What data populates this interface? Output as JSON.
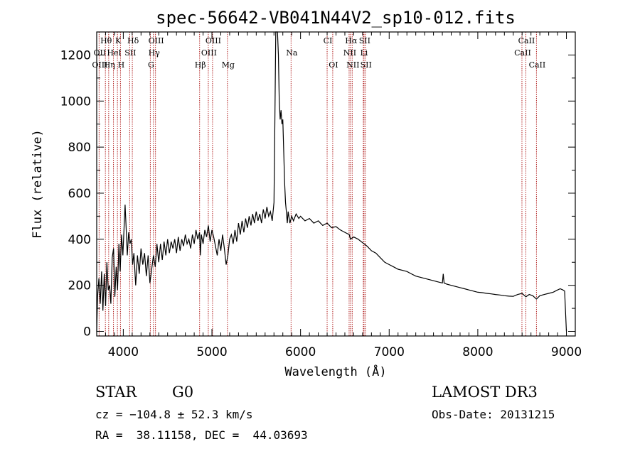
{
  "chart_data": {
    "type": "line",
    "title": "spec-56642-VB041N44V2_sp10-012.fits",
    "xlabel": "Wavelength (Å)",
    "ylabel": "Flux (relative)",
    "xlim": [
      3700,
      9100
    ],
    "ylim": [
      -20,
      1300
    ],
    "xticks": [
      4000,
      5000,
      6000,
      7000,
      8000,
      9000
    ],
    "yticks": [
      0,
      200,
      400,
      600,
      800,
      1000,
      1200
    ],
    "series": [
      {
        "name": "flux",
        "points": [
          [
            3700,
            0
          ],
          [
            3710,
            150
          ],
          [
            3725,
            230
          ],
          [
            3740,
            120
          ],
          [
            3755,
            260
          ],
          [
            3770,
            90
          ],
          [
            3785,
            250
          ],
          [
            3800,
            110
          ],
          [
            3815,
            300
          ],
          [
            3830,
            180
          ],
          [
            3845,
            200
          ],
          [
            3860,
            120
          ],
          [
            3875,
            320
          ],
          [
            3890,
            360
          ],
          [
            3905,
            150
          ],
          [
            3920,
            280
          ],
          [
            3935,
            180
          ],
          [
            3950,
            380
          ],
          [
            3965,
            260
          ],
          [
            3980,
            420
          ],
          [
            3995,
            330
          ],
          [
            4010,
            460
          ],
          [
            4020,
            550
          ],
          [
            4030,
            470
          ],
          [
            4045,
            330
          ],
          [
            4060,
            430
          ],
          [
            4075,
            380
          ],
          [
            4090,
            400
          ],
          [
            4105,
            290
          ],
          [
            4120,
            340
          ],
          [
            4140,
            200
          ],
          [
            4160,
            330
          ],
          [
            4180,
            250
          ],
          [
            4200,
            360
          ],
          [
            4220,
            290
          ],
          [
            4240,
            340
          ],
          [
            4260,
            240
          ],
          [
            4280,
            330
          ],
          [
            4300,
            210
          ],
          [
            4320,
            270
          ],
          [
            4340,
            330
          ],
          [
            4360,
            280
          ],
          [
            4380,
            380
          ],
          [
            4400,
            300
          ],
          [
            4420,
            380
          ],
          [
            4440,
            310
          ],
          [
            4460,
            390
          ],
          [
            4480,
            330
          ],
          [
            4500,
            400
          ],
          [
            4520,
            340
          ],
          [
            4540,
            390
          ],
          [
            4560,
            360
          ],
          [
            4580,
            400
          ],
          [
            4600,
            340
          ],
          [
            4620,
            410
          ],
          [
            4640,
            350
          ],
          [
            4660,
            400
          ],
          [
            4680,
            370
          ],
          [
            4700,
            420
          ],
          [
            4720,
            380
          ],
          [
            4740,
            400
          ],
          [
            4760,
            360
          ],
          [
            4780,
            420
          ],
          [
            4800,
            380
          ],
          [
            4820,
            440
          ],
          [
            4840,
            400
          ],
          [
            4860,
            430
          ],
          [
            4870,
            330
          ],
          [
            4880,
            420
          ],
          [
            4900,
            380
          ],
          [
            4920,
            440
          ],
          [
            4940,
            410
          ],
          [
            4960,
            460
          ],
          [
            4980,
            390
          ],
          [
            5000,
            440
          ],
          [
            5020,
            410
          ],
          [
            5040,
            370
          ],
          [
            5060,
            330
          ],
          [
            5080,
            400
          ],
          [
            5100,
            350
          ],
          [
            5120,
            420
          ],
          [
            5140,
            360
          ],
          [
            5160,
            290
          ],
          [
            5180,
            330
          ],
          [
            5200,
            400
          ],
          [
            5220,
            420
          ],
          [
            5240,
            380
          ],
          [
            5260,
            440
          ],
          [
            5280,
            390
          ],
          [
            5300,
            470
          ],
          [
            5320,
            420
          ],
          [
            5340,
            480
          ],
          [
            5360,
            430
          ],
          [
            5380,
            490
          ],
          [
            5400,
            450
          ],
          [
            5420,
            500
          ],
          [
            5440,
            460
          ],
          [
            5460,
            510
          ],
          [
            5480,
            470
          ],
          [
            5500,
            520
          ],
          [
            5520,
            480
          ],
          [
            5540,
            510
          ],
          [
            5560,
            470
          ],
          [
            5580,
            530
          ],
          [
            5600,
            490
          ],
          [
            5620,
            540
          ],
          [
            5640,
            500
          ],
          [
            5660,
            520
          ],
          [
            5680,
            480
          ],
          [
            5700,
            560
          ],
          [
            5710,
            900
          ],
          [
            5720,
            1300
          ],
          [
            5730,
            1300
          ],
          [
            5740,
            1300
          ],
          [
            5750,
            1200
          ],
          [
            5760,
            1000
          ],
          [
            5770,
            920
          ],
          [
            5780,
            960
          ],
          [
            5790,
            900
          ],
          [
            5800,
            920
          ],
          [
            5810,
            780
          ],
          [
            5820,
            650
          ],
          [
            5830,
            560
          ],
          [
            5840,
            520
          ],
          [
            5850,
            470
          ],
          [
            5860,
            520
          ],
          [
            5880,
            470
          ],
          [
            5900,
            500
          ],
          [
            5920,
            480
          ],
          [
            5950,
            510
          ],
          [
            5980,
            490
          ],
          [
            6000,
            500
          ],
          [
            6050,
            480
          ],
          [
            6100,
            490
          ],
          [
            6150,
            470
          ],
          [
            6200,
            480
          ],
          [
            6250,
            460
          ],
          [
            6300,
            470
          ],
          [
            6350,
            450
          ],
          [
            6400,
            455
          ],
          [
            6450,
            440
          ],
          [
            6500,
            430
          ],
          [
            6550,
            420
          ],
          [
            6563,
            400
          ],
          [
            6600,
            410
          ],
          [
            6650,
            400
          ],
          [
            6700,
            385
          ],
          [
            6750,
            370
          ],
          [
            6800,
            350
          ],
          [
            6850,
            340
          ],
          [
            6900,
            320
          ],
          [
            6950,
            300
          ],
          [
            7000,
            290
          ],
          [
            7050,
            280
          ],
          [
            7100,
            270
          ],
          [
            7150,
            265
          ],
          [
            7200,
            260
          ],
          [
            7250,
            250
          ],
          [
            7300,
            240
          ],
          [
            7350,
            235
          ],
          [
            7400,
            230
          ],
          [
            7450,
            225
          ],
          [
            7500,
            220
          ],
          [
            7550,
            215
          ],
          [
            7600,
            210
          ],
          [
            7610,
            250
          ],
          [
            7620,
            210
          ],
          [
            7650,
            205
          ],
          [
            7700,
            200
          ],
          [
            7750,
            195
          ],
          [
            7800,
            190
          ],
          [
            7850,
            185
          ],
          [
            7900,
            180
          ],
          [
            7950,
            175
          ],
          [
            8000,
            170
          ],
          [
            8050,
            168
          ],
          [
            8100,
            165
          ],
          [
            8150,
            163
          ],
          [
            8200,
            160
          ],
          [
            8250,
            158
          ],
          [
            8300,
            155
          ],
          [
            8350,
            153
          ],
          [
            8400,
            152
          ],
          [
            8450,
            160
          ],
          [
            8500,
            165
          ],
          [
            8542,
            150
          ],
          [
            8580,
            160
          ],
          [
            8620,
            155
          ],
          [
            8662,
            140
          ],
          [
            8700,
            155
          ],
          [
            8750,
            160
          ],
          [
            8800,
            165
          ],
          [
            8850,
            170
          ],
          [
            8900,
            180
          ],
          [
            8930,
            185
          ],
          [
            8960,
            180
          ],
          [
            8980,
            175
          ],
          [
            9000,
            0
          ]
        ]
      }
    ],
    "annotations": [
      {
        "label": "Hθ",
        "x": 3798,
        "row": 1
      },
      {
        "label": "K",
        "x": 3934,
        "row": 1
      },
      {
        "label": "Hδ",
        "x": 4102,
        "row": 1
      },
      {
        "label": "OIII",
        "x": 4363,
        "row": 1
      },
      {
        "label": "OIII",
        "x": 5007,
        "row": 1
      },
      {
        "label": "CI",
        "x": 6300,
        "row": 1
      },
      {
        "label": "Hα",
        "x": 6563,
        "row": 1
      },
      {
        "label": "SII",
        "x": 6716,
        "row": 1
      },
      {
        "label": "CaII",
        "x": 8542,
        "row": 1
      },
      {
        "label": "OII",
        "x": 3727,
        "row": 2
      },
      {
        "label": "HeI",
        "x": 3889,
        "row": 2
      },
      {
        "label": "SII",
        "x": 4072,
        "row": 2
      },
      {
        "label": "Hγ",
        "x": 4340,
        "row": 2
      },
      {
        "label": "OIII",
        "x": 4959,
        "row": 2
      },
      {
        "label": "Na",
        "x": 5893,
        "row": 2
      },
      {
        "label": "NII",
        "x": 6548,
        "row": 2
      },
      {
        "label": "Li",
        "x": 6708,
        "row": 2
      },
      {
        "label": "CaII",
        "x": 8498,
        "row": 2
      },
      {
        "label": "OIII",
        "x": 3727,
        "row": 3
      },
      {
        "label": "Hη",
        "x": 3835,
        "row": 3
      },
      {
        "label": "H",
        "x": 3968,
        "row": 3
      },
      {
        "label": "G",
        "x": 4305,
        "row": 3
      },
      {
        "label": "Hβ",
        "x": 4861,
        "row": 3
      },
      {
        "label": "Mg",
        "x": 5175,
        "row": 3
      },
      {
        "label": "OI",
        "x": 6363,
        "row": 3
      },
      {
        "label": "NII",
        "x": 6583,
        "row": 3
      },
      {
        "label": "SII",
        "x": 6731,
        "row": 3
      },
      {
        "label": "CaII",
        "x": 8662,
        "row": 3
      }
    ],
    "line_positions": [
      3727,
      3798,
      3835,
      3889,
      3934,
      3968,
      4072,
      4102,
      4305,
      4340,
      4363,
      4861,
      4959,
      5007,
      5175,
      5893,
      6300,
      6363,
      6548,
      6563,
      6583,
      6708,
      6716,
      6731,
      8498,
      8542,
      8662
    ]
  },
  "info": {
    "object_class": "STAR",
    "subclass": "G0",
    "survey": "LAMOST DR3",
    "cz": "cz = −104.8 ± 52.3 km/s",
    "obs_date": "Obs-Date: 20131215",
    "coords": "RA =  38.11158, DEC =  44.03693"
  },
  "colors": {
    "line_marker": "#b22222",
    "spectrum": "#000000"
  }
}
